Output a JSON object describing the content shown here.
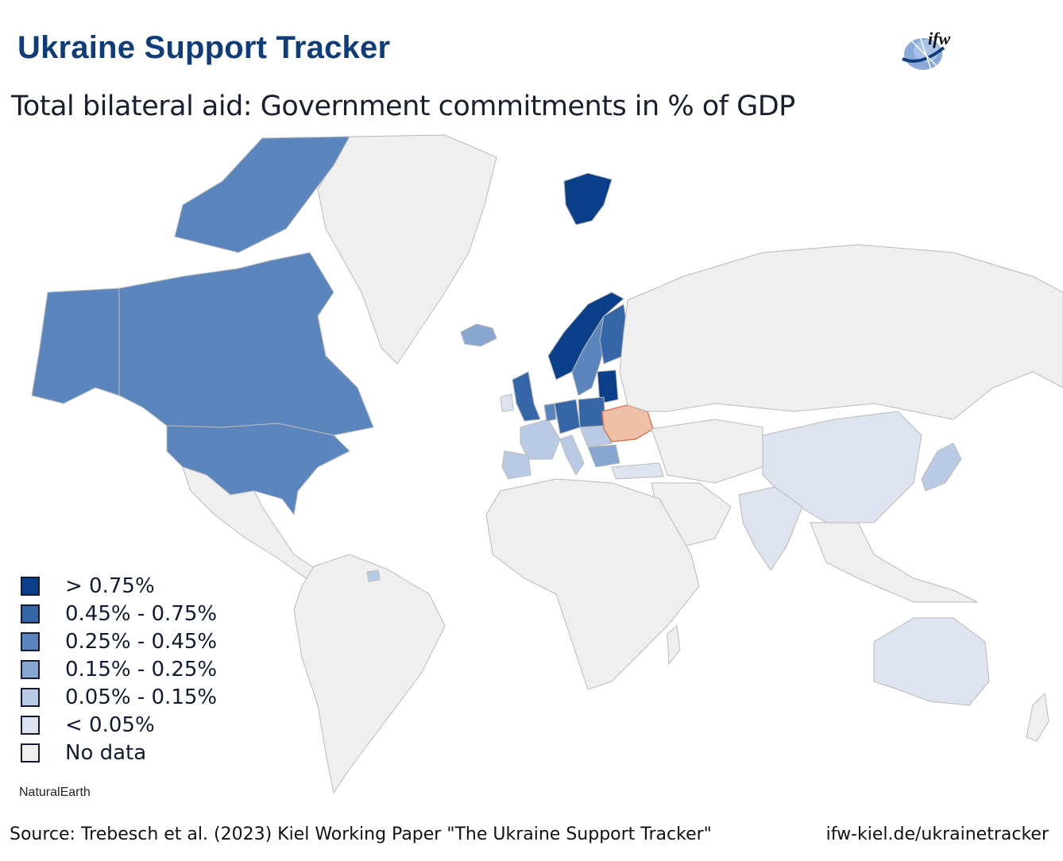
{
  "header": {
    "title": "Ukraine Support Tracker",
    "logo_text": "ifw"
  },
  "subtitle": "Total bilateral aid: Government commitments in % of GDP",
  "colors": {
    "gt_075": "#0b3f8a",
    "r_045_075": "#3566a8",
    "r_025_045": "#5b86bd",
    "r_015_025": "#88a7d0",
    "r_005_015": "#b9cbe4",
    "lt_005": "#dde4f0",
    "no_data": "#efefef",
    "ukraine": "#efbfa8",
    "ukraine_border": "#d9775a"
  },
  "legend": {
    "items": [
      {
        "label": "> 0.75%",
        "color": "#0b3f8a"
      },
      {
        "label": "0.45% - 0.75%",
        "color": "#3566a8"
      },
      {
        "label": "0.25% - 0.45%",
        "color": "#5b86bd"
      },
      {
        "label": "0.15% - 0.25%",
        "color": "#88a7d0"
      },
      {
        "label": "0.05% - 0.15%",
        "color": "#b9cbe4"
      },
      {
        "label": "< 0.05%",
        "color": "#dde4f0"
      },
      {
        "label": "No data",
        "color": "#efefef"
      }
    ]
  },
  "credit": "NaturalEarth",
  "footer": {
    "source": "Source: Trebesch et al. (2023) Kiel Working Paper \"The Ukraine Support Tracker\"",
    "url": "ifw-kiel.de/ukrainetracker"
  }
}
